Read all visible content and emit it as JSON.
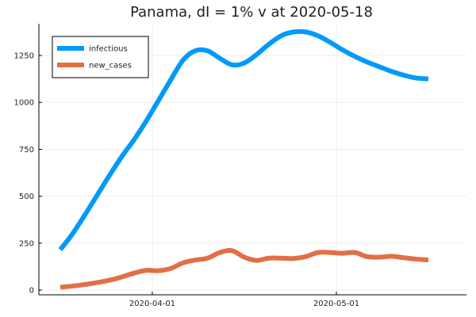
{
  "chart_data": {
    "type": "line",
    "title": "Panama,  dI = 1% v at 2020-05-18",
    "xlabel": "",
    "ylabel": "",
    "x_axis": {
      "type": "date",
      "range": [
        "2020-03-17",
        "2020-05-18"
      ],
      "ticks": [
        "2020-04-01",
        "2020-05-01"
      ]
    },
    "y_axis": {
      "range": [
        0,
        1400
      ],
      "ticks": [
        0,
        250,
        500,
        750,
        1000,
        1250
      ]
    },
    "grid": true,
    "legend_position": "top-left",
    "series": [
      {
        "name": "infectious",
        "color": "#009af9",
        "points": [
          [
            "2020-03-17",
            215
          ],
          [
            "2020-03-19",
            300
          ],
          [
            "2020-03-21",
            400
          ],
          [
            "2020-03-23",
            505
          ],
          [
            "2020-03-25",
            610
          ],
          [
            "2020-03-27",
            710
          ],
          [
            "2020-03-29",
            800
          ],
          [
            "2020-03-31",
            900
          ],
          [
            "2020-04-02",
            1010
          ],
          [
            "2020-04-04",
            1120
          ],
          [
            "2020-04-06",
            1225
          ],
          [
            "2020-04-08",
            1275
          ],
          [
            "2020-04-10",
            1275
          ],
          [
            "2020-04-12",
            1235
          ],
          [
            "2020-04-14",
            1200
          ],
          [
            "2020-04-16",
            1210
          ],
          [
            "2020-04-18",
            1255
          ],
          [
            "2020-04-20",
            1310
          ],
          [
            "2020-04-22",
            1355
          ],
          [
            "2020-04-24",
            1375
          ],
          [
            "2020-04-26",
            1375
          ],
          [
            "2020-04-28",
            1355
          ],
          [
            "2020-04-30",
            1320
          ],
          [
            "2020-05-02",
            1280
          ],
          [
            "2020-05-04",
            1245
          ],
          [
            "2020-05-06",
            1215
          ],
          [
            "2020-05-08",
            1190
          ],
          [
            "2020-05-10",
            1165
          ],
          [
            "2020-05-12",
            1145
          ],
          [
            "2020-05-14",
            1130
          ],
          [
            "2020-05-16",
            1125
          ]
        ]
      },
      {
        "name": "new_cases",
        "color": "#e26f46",
        "points": [
          [
            "2020-03-17",
            15
          ],
          [
            "2020-03-20",
            25
          ],
          [
            "2020-03-23",
            40
          ],
          [
            "2020-03-26",
            60
          ],
          [
            "2020-03-29",
            90
          ],
          [
            "2020-03-31",
            105
          ],
          [
            "2020-04-02",
            103
          ],
          [
            "2020-04-04",
            115
          ],
          [
            "2020-04-06",
            145
          ],
          [
            "2020-04-08",
            160
          ],
          [
            "2020-04-10",
            170
          ],
          [
            "2020-04-12",
            200
          ],
          [
            "2020-04-14",
            210
          ],
          [
            "2020-04-16",
            175
          ],
          [
            "2020-04-18",
            158
          ],
          [
            "2020-04-20",
            170
          ],
          [
            "2020-04-22",
            170
          ],
          [
            "2020-04-24",
            168
          ],
          [
            "2020-04-26",
            178
          ],
          [
            "2020-04-28",
            200
          ],
          [
            "2020-04-30",
            200
          ],
          [
            "2020-05-02",
            196
          ],
          [
            "2020-05-04",
            200
          ],
          [
            "2020-05-06",
            178
          ],
          [
            "2020-05-08",
            175
          ],
          [
            "2020-05-10",
            180
          ],
          [
            "2020-05-12",
            172
          ],
          [
            "2020-05-14",
            165
          ],
          [
            "2020-05-16",
            160
          ]
        ]
      }
    ]
  }
}
